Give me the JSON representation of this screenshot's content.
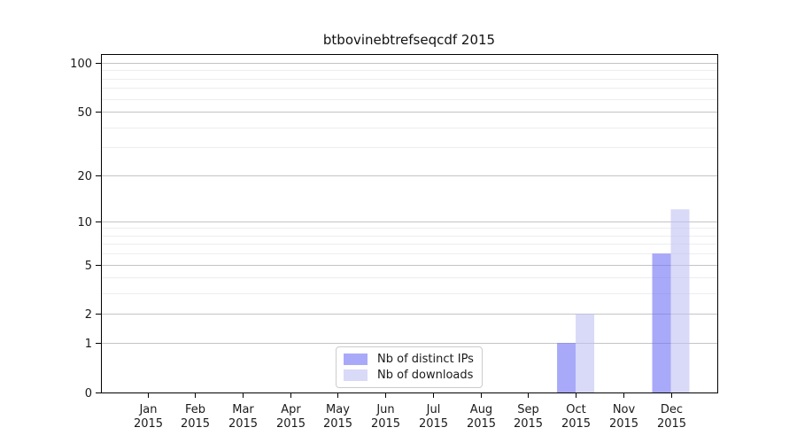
{
  "window": {
    "background": "#ffffff"
  },
  "chart_data": {
    "type": "bar",
    "title": "btbovinebtrefseqcdf 2015",
    "y_scale": "log1p",
    "categories": [
      "Jan 2015",
      "Feb 2015",
      "Mar 2015",
      "Apr 2015",
      "May 2015",
      "Jun 2015",
      "Jul 2015",
      "Aug 2015",
      "Sep 2015",
      "Oct 2015",
      "Nov 2015",
      "Dec 2015"
    ],
    "series": [
      {
        "name": "Nb of distinct IPs",
        "color": "#6f6ff5",
        "values": [
          0,
          0,
          0,
          0,
          0,
          0,
          0,
          0,
          0,
          1,
          0,
          6
        ]
      },
      {
        "name": "Nb of downloads",
        "color": "#c0c0f4",
        "values": [
          0,
          0,
          0,
          0,
          0,
          0,
          0,
          0,
          0,
          2,
          0,
          12
        ]
      }
    ],
    "bar_opacity": 0.6,
    "ytick_labels": [
      0,
      1,
      2,
      5,
      10,
      20,
      50,
      100
    ],
    "grid_major_values": [
      1,
      2,
      5,
      10,
      20,
      50,
      100
    ],
    "grid_minor_values": [
      3,
      4,
      6,
      7,
      8,
      9,
      30,
      40,
      60,
      70,
      80,
      90
    ],
    "ylim": [
      0,
      113
    ],
    "grid": true,
    "legend_position": "lower center",
    "colors": {
      "grid_major": "#c4c4c4",
      "grid_minor": "#ededed",
      "axis": "#000000",
      "tick_text": "#1a1a1a"
    }
  }
}
